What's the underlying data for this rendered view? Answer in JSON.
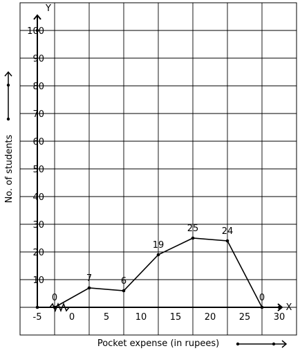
{
  "chart_data": {
    "type": "line",
    "title": "",
    "xlabel": "Pocket expense (in rupees)",
    "ylabel": "No. of students",
    "x_axis_letter": "X",
    "y_axis_letter": "Y",
    "xlim": [
      -7.5,
      32.5
    ],
    "ylim": [
      -10,
      110
    ],
    "grid": true,
    "x_ticks": [
      -5,
      0,
      5,
      10,
      15,
      20,
      25,
      30
    ],
    "x_tick_labels": [
      "-5",
      "0",
      "5",
      "10",
      "15",
      "20",
      "25",
      "30"
    ],
    "y_ticks": [
      10,
      20,
      30,
      40,
      50,
      60,
      70,
      80,
      90,
      100
    ],
    "y_tick_labels": [
      "10",
      "20",
      "30",
      "40",
      "50",
      "60",
      "70",
      "80",
      "90",
      "100"
    ],
    "series": [
      {
        "x": [
          -2.5,
          2.5,
          7.5,
          12.5,
          17.5,
          22.5,
          27.5
        ],
        "y": [
          0,
          7,
          6,
          19,
          25,
          24,
          0
        ],
        "labels": [
          "0",
          "7",
          "6",
          "19",
          "25",
          "24",
          "0"
        ]
      }
    ],
    "colors": {
      "line": "#000000",
      "grid": "#000000"
    }
  }
}
